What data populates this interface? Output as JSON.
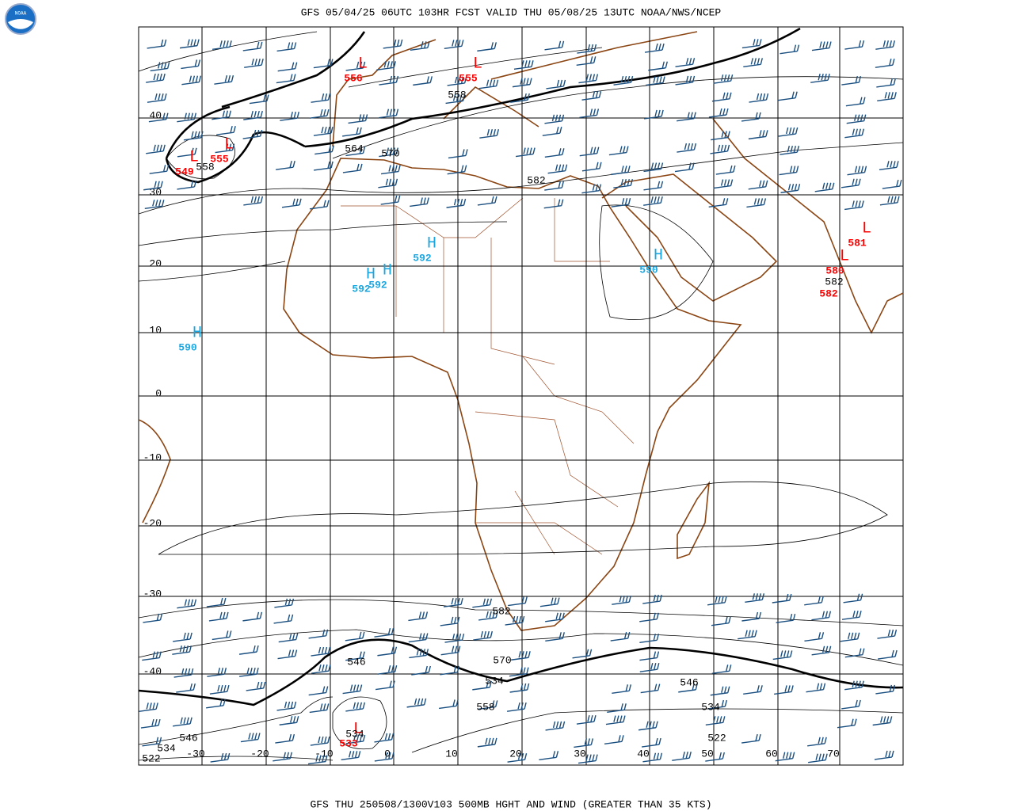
{
  "header": {
    "title": "GFS 05/04/25 06UTC 103HR FCST VALID THU 05/08/25 13UTC NOAA/NWS/NCEP"
  },
  "footer": {
    "caption": "GFS THU 250508/1300V103 500MB HGHT AND WIND (GREATER THAN 35 KTS)"
  },
  "logo": {
    "label": "NOAA"
  },
  "map": {
    "lat_labels": [
      "40",
      "30",
      "20",
      "10",
      "0",
      "-10",
      "-20",
      "-30",
      "-40"
    ],
    "lon_labels": [
      "-30",
      "-20",
      "-10",
      "0",
      "10",
      "20",
      "30",
      "40",
      "50",
      "60",
      "70"
    ],
    "centers": [
      {
        "symbol": "L",
        "value": "556",
        "color": "#ff0000"
      },
      {
        "symbol": "L",
        "value": "555",
        "color": "#ff0000"
      },
      {
        "symbol": "L",
        "value": "549",
        "color": "#ff0000"
      },
      {
        "symbol": "L",
        "value": "555",
        "color": "#ff0000"
      },
      {
        "symbol": "H",
        "value": "592",
        "color": "#1aa6e0"
      },
      {
        "symbol": "H",
        "value": "592",
        "color": "#1aa6e0"
      },
      {
        "symbol": "H",
        "value": "592",
        "color": "#1aa6e0"
      },
      {
        "symbol": "H",
        "value": "590",
        "color": "#1aa6e0"
      },
      {
        "symbol": "H",
        "value": "590",
        "color": "#1aa6e0"
      },
      {
        "symbol": "L",
        "value": "580",
        "color": "#ff0000"
      },
      {
        "symbol": "L",
        "value": "581",
        "color": "#ff0000"
      },
      {
        "value": "582",
        "color": "#ff0000"
      },
      {
        "symbol": "L",
        "value": "533",
        "color": "#ff0000"
      }
    ],
    "contour_labels": [
      "558",
      "564",
      "570",
      "582",
      "558",
      "582",
      "582",
      "570",
      "546",
      "534",
      "546",
      "558",
      "534",
      "534",
      "546",
      "522",
      "534",
      "522"
    ]
  }
}
